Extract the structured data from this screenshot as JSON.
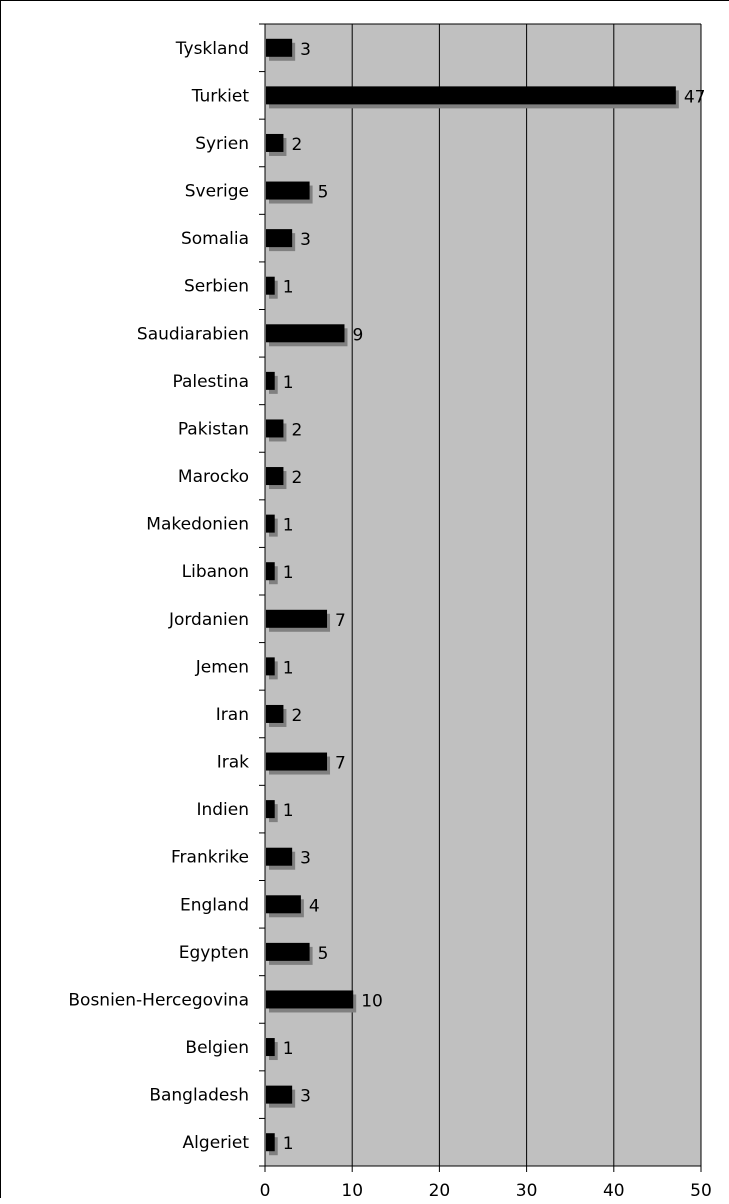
{
  "chart_data": {
    "type": "bar",
    "orientation": "horizontal",
    "categories": [
      "Tyskland",
      "Turkiet",
      "Syrien",
      "Sverige",
      "Somalia",
      "Serbien",
      "Saudiarabien",
      "Palestina",
      "Pakistan",
      "Marocko",
      "Makedonien",
      "Libanon",
      "Jordanien",
      "Jemen",
      "Iran",
      "Irak",
      "Indien",
      "Frankrike",
      "England",
      "Egypten",
      "Bosnien-Hercegovina",
      "Belgien",
      "Bangladesh",
      "Algeriet"
    ],
    "values": [
      3,
      47,
      2,
      5,
      3,
      1,
      9,
      1,
      2,
      2,
      1,
      1,
      7,
      1,
      2,
      7,
      1,
      3,
      4,
      5,
      10,
      1,
      3,
      1
    ],
    "value_labels": [
      "3",
      "47",
      "2",
      "5",
      "3",
      "1",
      "9",
      "1",
      "2",
      "2",
      "1",
      "1",
      "7",
      "1",
      "2",
      "7",
      "1",
      "3",
      "4",
      "5",
      "10",
      "1",
      "3",
      "1"
    ],
    "xlim": [
      0,
      50
    ],
    "x_ticks": [
      0,
      10,
      20,
      30,
      40,
      50
    ],
    "x_tick_labels": [
      "0",
      "10",
      "20",
      "30",
      "40",
      "50"
    ],
    "title": "",
    "xlabel": "",
    "ylabel": "",
    "grid": "vertical",
    "legend": "none",
    "colors": {
      "bar": "#000000",
      "bar_shadow": "#808080",
      "plot_background": "#c0c0c0",
      "gridline": "#000000"
    }
  }
}
